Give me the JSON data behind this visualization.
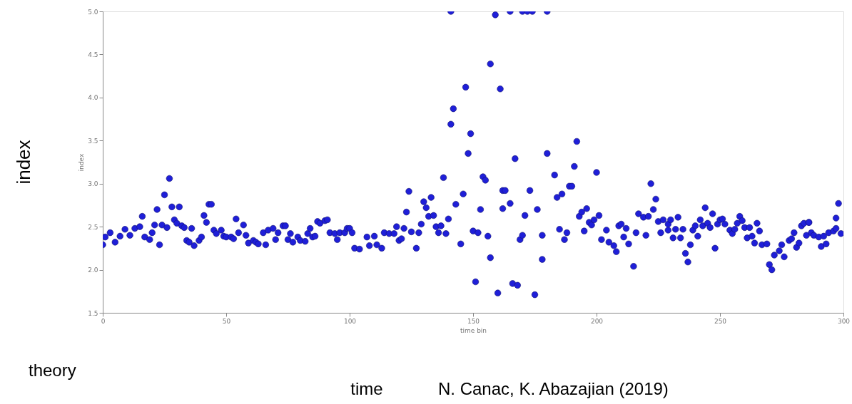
{
  "chart_data": {
    "type": "scatter",
    "xlabel": "time bin",
    "ylabel": "index",
    "annotations": [
      "index",
      "theory",
      "time",
      "N. Canac, K. Abazajian (2019)"
    ],
    "xlim": [
      0,
      300
    ],
    "xticks": [
      0,
      50,
      100,
      150,
      200,
      250,
      300
    ],
    "ylim": [
      1.5,
      5.0
    ],
    "yticks": [
      {
        "value": 1.5,
        "label": "1.5"
      },
      {
        "value": 2,
        "label": "2.0"
      },
      {
        "value": 2.5,
        "label": "2.5"
      },
      {
        "value": 3,
        "label": "3.0"
      },
      {
        "value": 3.5,
        "label": "3.5"
      },
      {
        "value": 4,
        "label": "4.0"
      },
      {
        "value": 4.5,
        "label": "4.5"
      },
      {
        "value": 5,
        "label": "5.0"
      }
    ],
    "grid": false,
    "marker": "circle",
    "series": [
      {
        "color": "#1f1fd8",
        "x": [
          0,
          1,
          3,
          5,
          7,
          9,
          11,
          13,
          15,
          16,
          17,
          19,
          20,
          21,
          22,
          23,
          24,
          25,
          26,
          27,
          28,
          29,
          30,
          31,
          32,
          33,
          34,
          35,
          36,
          37,
          39,
          40,
          41,
          42,
          43,
          44,
          45,
          46,
          48,
          49,
          50,
          52,
          53,
          54,
          55,
          57,
          58,
          59,
          61,
          62,
          63,
          65,
          66,
          67,
          69,
          70,
          71,
          73,
          74,
          75,
          76,
          77,
          79,
          80,
          82,
          83,
          84,
          85,
          86,
          87,
          88,
          90,
          91,
          92,
          94,
          95,
          96,
          98,
          99,
          100,
          101,
          102,
          104,
          107,
          108,
          110,
          111,
          113,
          114,
          116,
          118,
          119,
          120,
          121,
          122,
          123,
          124,
          125,
          127,
          128,
          129,
          130,
          131,
          132,
          133,
          134,
          135,
          136,
          137,
          138,
          139,
          140,
          141,
          141,
          142,
          143,
          145,
          146,
          147,
          148,
          149,
          150,
          151,
          152,
          153,
          154,
          155,
          156,
          157,
          157,
          159,
          160,
          161,
          162,
          162,
          163,
          165,
          166,
          165,
          167,
          168,
          169,
          170,
          170,
          171,
          172,
          173,
          174,
          175,
          176,
          178,
          178,
          180,
          180,
          183,
          184,
          185,
          186,
          187,
          188,
          189,
          190,
          191,
          192,
          193,
          194,
          195,
          196,
          197,
          198,
          199,
          200,
          201,
          202,
          204,
          205,
          207,
          208,
          209,
          210,
          211,
          212,
          213,
          215,
          216,
          217,
          219,
          220,
          221,
          222,
          223,
          224,
          225,
          226,
          227,
          229,
          229,
          230,
          231,
          232,
          233,
          234,
          235,
          236,
          237,
          238,
          239,
          240,
          241,
          242,
          243,
          244,
          245,
          246,
          247,
          248,
          249,
          250,
          251,
          252,
          254,
          255,
          256,
          257,
          258,
          259,
          260,
          261,
          262,
          263,
          264,
          265,
          266,
          267,
          269,
          270,
          271,
          272,
          274,
          275,
          276,
          278,
          279,
          280,
          281,
          282,
          283,
          284,
          286,
          285,
          286,
          287,
          288,
          290,
          291,
          292,
          293,
          294,
          296,
          297,
          297,
          298,
          299
        ],
        "values": [
          2.29,
          2.38,
          2.43,
          2.32,
          2.39,
          2.47,
          2.4,
          2.48,
          2.5,
          2.62,
          2.38,
          2.35,
          2.43,
          2.52,
          2.7,
          2.29,
          2.52,
          2.87,
          2.49,
          3.06,
          2.73,
          2.58,
          2.54,
          2.73,
          2.51,
          2.49,
          2.34,
          2.32,
          2.48,
          2.28,
          2.34,
          2.38,
          2.63,
          2.55,
          2.76,
          2.76,
          2.46,
          2.42,
          2.46,
          2.39,
          2.38,
          2.38,
          2.36,
          2.59,
          2.43,
          2.52,
          2.4,
          2.31,
          2.34,
          2.32,
          2.3,
          2.43,
          2.29,
          2.46,
          2.48,
          2.35,
          2.43,
          2.51,
          2.51,
          2.35,
          2.42,
          2.32,
          2.38,
          2.34,
          2.33,
          2.42,
          2.48,
          2.38,
          2.39,
          2.56,
          2.54,
          2.57,
          2.58,
          2.43,
          2.42,
          2.35,
          2.43,
          2.43,
          2.48,
          2.48,
          2.43,
          2.25,
          2.24,
          2.38,
          2.28,
          2.39,
          2.29,
          2.25,
          2.43,
          2.42,
          2.42,
          2.5,
          2.34,
          2.36,
          2.48,
          2.67,
          2.91,
          2.44,
          2.25,
          2.43,
          2.53,
          2.79,
          2.72,
          2.62,
          2.84,
          2.63,
          2.5,
          2.43,
          2.51,
          3.07,
          2.42,
          2.59,
          3.69,
          5.0,
          3.87,
          2.76,
          2.3,
          2.88,
          4.12,
          3.35,
          3.58,
          2.45,
          1.86,
          2.43,
          2.7,
          3.08,
          3.04,
          2.39,
          2.14,
          4.39,
          4.96,
          1.73,
          4.1,
          2.92,
          2.71,
          2.92,
          2.77,
          1.84,
          5.0,
          3.29,
          1.82,
          2.35,
          2.4,
          5.0,
          2.63,
          5.0,
          2.92,
          5.0,
          1.71,
          2.7,
          2.4,
          2.12,
          3.35,
          5.0,
          3.1,
          2.84,
          2.47,
          2.88,
          2.35,
          2.43,
          2.97,
          2.97,
          3.2,
          3.49,
          2.62,
          2.67,
          2.45,
          2.71,
          2.55,
          2.52,
          2.58,
          3.13,
          2.63,
          2.35,
          2.46,
          2.32,
          2.28,
          2.21,
          2.51,
          2.53,
          2.38,
          2.48,
          2.3,
          2.04,
          2.43,
          2.65,
          2.61,
          2.4,
          2.62,
          3.0,
          2.7,
          2.82,
          2.56,
          2.43,
          2.58,
          2.53,
          2.46,
          2.58,
          2.37,
          2.47,
          2.61,
          2.37,
          2.47,
          2.19,
          2.09,
          2.29,
          2.46,
          2.51,
          2.39,
          2.58,
          2.51,
          2.72,
          2.54,
          2.49,
          2.65,
          2.25,
          2.53,
          2.58,
          2.59,
          2.53,
          2.46,
          2.42,
          2.47,
          2.54,
          2.62,
          2.57,
          2.49,
          2.37,
          2.49,
          2.39,
          2.31,
          2.54,
          2.45,
          2.29,
          2.3,
          2.06,
          2.0,
          2.17,
          2.22,
          2.29,
          2.15,
          2.34,
          2.36,
          2.43,
          2.26,
          2.31,
          2.51,
          2.54,
          2.55,
          2.4,
          2.55,
          2.43,
          2.4,
          2.38,
          2.27,
          2.39,
          2.3,
          2.43,
          2.45,
          2.48,
          2.6,
          2.77,
          2.42
        ]
      }
    ]
  }
}
